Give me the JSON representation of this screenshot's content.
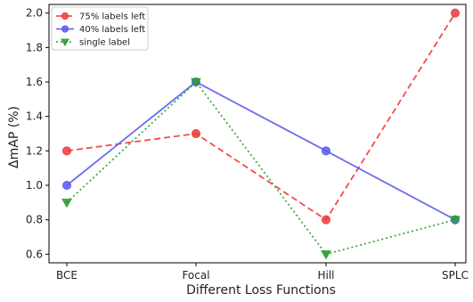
{
  "chart_data": {
    "type": "line",
    "title": "",
    "xlabel": "Different Loss Functions",
    "ylabel": "ΔmAP (%)",
    "categories": [
      "BCE",
      "Focal",
      "Hill",
      "SPLC"
    ],
    "yticks": [
      "0.6",
      "0.8",
      "1.0",
      "1.2",
      "1.4",
      "1.6",
      "1.8",
      "2.0"
    ],
    "ylim": [
      0.55,
      2.05
    ],
    "grid": false,
    "legend_position": "top-left",
    "series": [
      {
        "name": "75% labels left",
        "values": [
          1.2,
          1.3,
          0.8,
          2.0
        ],
        "color": "#f03a3a",
        "line_style": "dashed",
        "marker": "circle"
      },
      {
        "name": "40% labels left",
        "values": [
          1.0,
          1.6,
          1.2,
          0.8
        ],
        "color": "#5b5bf0",
        "line_style": "solid",
        "marker": "circle"
      },
      {
        "name": "single label",
        "values": [
          0.9,
          1.6,
          0.6,
          0.8
        ],
        "color": "#2ca02c",
        "line_style": "dotted",
        "marker": "triangle-down"
      }
    ]
  }
}
